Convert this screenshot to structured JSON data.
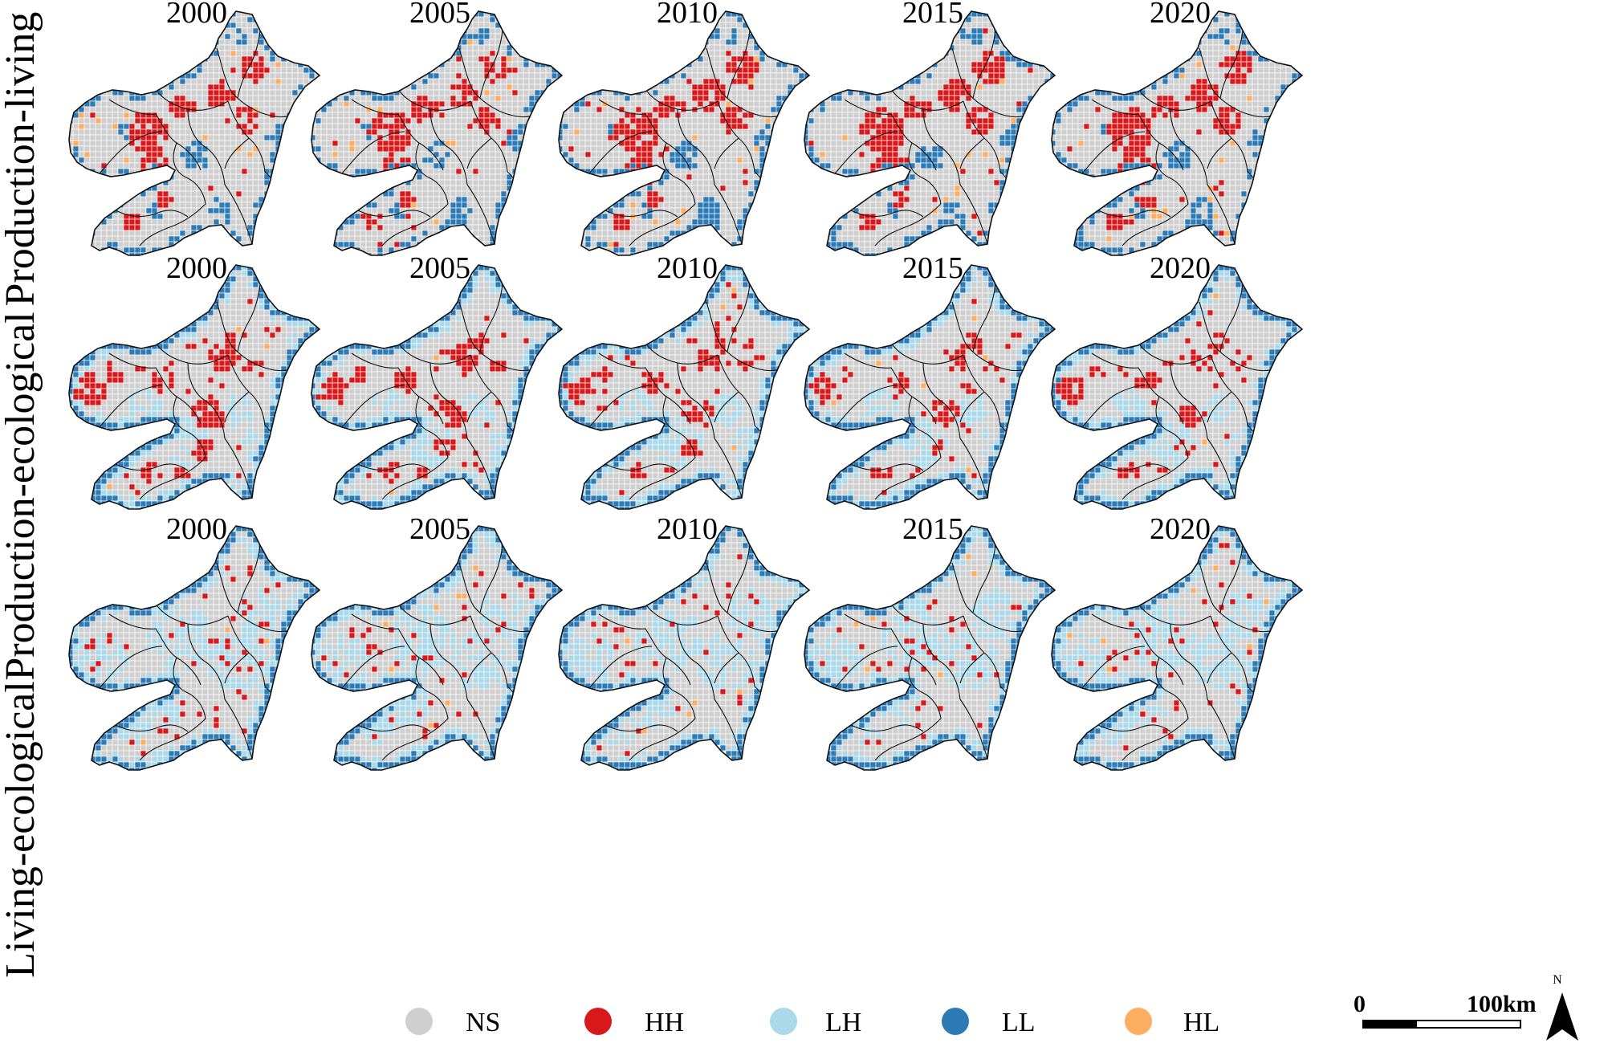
{
  "rows": [
    {
      "label": "Production-living",
      "pattern": "production-living"
    },
    {
      "label": "Production-ecological",
      "pattern": "production-ecological"
    },
    {
      "label": "Living-ecological",
      "pattern": "living-ecological"
    }
  ],
  "years": [
    "2000",
    "2005",
    "2010",
    "2015",
    "2020"
  ],
  "legend": [
    {
      "code": "NS",
      "label": "NS",
      "color": "#cfcfcf"
    },
    {
      "code": "HH",
      "label": "HH",
      "color": "#d7191c"
    },
    {
      "code": "LH",
      "label": "LH",
      "color": "#abd9e9"
    },
    {
      "code": "LL",
      "label": "LL",
      "color": "#2c7bb6"
    },
    {
      "code": "HL",
      "label": "HL",
      "color": "#fdae61"
    }
  ],
  "scale_bar": {
    "start_label": "0",
    "end_label": "100km"
  },
  "north_arrow": {
    "label": "N"
  },
  "colors": {
    "boundary": "#111111",
    "grid": "#ffffff",
    "edge_ll": "#2c7bb6"
  }
}
